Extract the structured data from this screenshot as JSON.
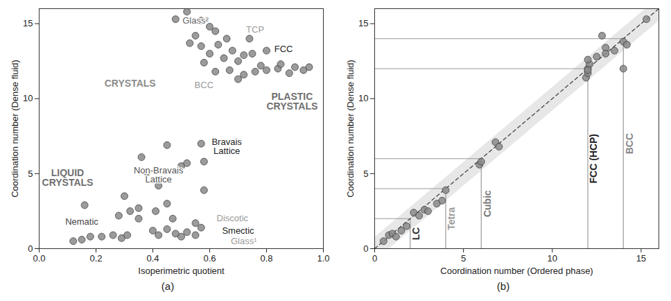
{
  "chart_data": [
    {
      "type": "scatter",
      "panel_label": "(a)",
      "x_label": "Isoperimetric quotient",
      "y_label": "Coordination number (Dense fluid)",
      "xlim": [
        0,
        1
      ],
      "xticks": [
        {
          "value": 0,
          "label": "0.0"
        },
        0.2,
        0.4,
        0.6,
        0.8,
        {
          "value": 1,
          "label": "1.0"
        }
      ],
      "ylim": [
        0,
        16
      ],
      "yticks": [
        0,
        5,
        10,
        15
      ],
      "color": "#8a8a8a",
      "points": {
        "x": [
          0.16,
          0.12,
          0.15,
          0.18,
          0.22,
          0.26,
          0.29,
          0.31,
          0.28,
          0.3,
          0.32,
          0.35,
          0.36,
          0.38,
          0.42,
          0.45,
          0.45,
          0.5,
          0.52,
          0.57,
          0.58,
          0.58,
          0.4,
          0.42,
          0.45,
          0.48,
          0.5,
          0.52,
          0.55,
          0.57,
          0.55,
          0.35,
          0.41,
          0.47,
          0.52,
          0.48,
          0.57,
          0.55,
          0.6,
          0.62,
          0.66,
          0.63,
          0.57,
          0.6,
          0.65,
          0.68,
          0.7,
          0.72,
          0.75,
          0.78,
          0.62,
          0.67,
          0.72,
          0.76,
          0.8,
          0.84,
          0.88,
          0.9,
          0.93,
          0.95,
          0.85,
          0.8,
          0.74,
          0.7,
          0.58,
          0.53
        ],
        "y": [
          2.9,
          0.5,
          0.6,
          0.8,
          0.8,
          0.9,
          0.7,
          0.9,
          2.2,
          3.5,
          2.5,
          2.7,
          6.1,
          5.1,
          4.2,
          3.0,
          6.9,
          5.5,
          5.7,
          7.0,
          5.8,
          3.9,
          1.2,
          0.9,
          1.3,
          1.0,
          0.8,
          1.1,
          0.9,
          1.4,
          1.7,
          2.0,
          2.5,
          2.0,
          15.8,
          15.3,
          15.2,
          14.2,
          14.8,
          14.5,
          14.0,
          13.6,
          13.5,
          13.0,
          12.7,
          13.2,
          12.5,
          12.9,
          13.0,
          12.2,
          11.8,
          11.9,
          11.6,
          11.8,
          11.9,
          12.0,
          11.7,
          12.1,
          11.9,
          12.1,
          12.3,
          13.2,
          14.0,
          11.3,
          12.4,
          13.7
        ]
      },
      "annotations": [
        {
          "text": "CRYSTALS",
          "x": 0.32,
          "y": 11,
          "color": "#8c8c8c",
          "kind": "region"
        },
        {
          "text": "PLASTIC CRYSTALS",
          "x": 0.89,
          "y": 9.8,
          "color": "#707070",
          "kind": "region"
        },
        {
          "text": "LIQUID CRYSTALS",
          "x": 0.1,
          "y": 4.7,
          "color": "#707070",
          "kind": "region"
        },
        {
          "text": "Glass²",
          "x": 0.55,
          "y": 15.2,
          "color": "#666666",
          "kind": "label"
        },
        {
          "text": "TCP",
          "x": 0.76,
          "y": 14.6,
          "color": "#9a9a9a",
          "kind": "label"
        },
        {
          "text": "FCC",
          "x": 0.86,
          "y": 13.3,
          "color": "#222222",
          "kind": "label"
        },
        {
          "text": "BCC",
          "x": 0.58,
          "y": 10.9,
          "color": "#9a9a9a",
          "kind": "label"
        },
        {
          "text": "Bravais Lattice",
          "x": 0.66,
          "y": 6.8,
          "color": "#222222",
          "kind": "label"
        },
        {
          "text": "Non-Bravais Lattice",
          "x": 0.42,
          "y": 4.9,
          "color": "#555555",
          "kind": "label"
        },
        {
          "text": "Nematic",
          "x": 0.15,
          "y": 1.8,
          "color": "#444444",
          "kind": "label"
        },
        {
          "text": "Discotic",
          "x": 0.68,
          "y": 2.0,
          "color": "#9a9a9a",
          "kind": "label"
        },
        {
          "text": "Smectic",
          "x": 0.7,
          "y": 1.2,
          "color": "#222222",
          "kind": "label"
        },
        {
          "text": "Glass¹",
          "x": 0.72,
          "y": 0.5,
          "color": "#9a9a9a",
          "kind": "label"
        }
      ]
    },
    {
      "type": "scatter",
      "panel_label": "(b)",
      "x_label": "Coordination number (Ordered phase)",
      "y_label": "Coordination number (Dense fluid)",
      "xlim": [
        0,
        16
      ],
      "xticks": [
        0,
        5,
        10,
        15
      ],
      "ylim": [
        0,
        16
      ],
      "yticks": [
        0,
        5,
        10,
        15
      ],
      "color": "#8a8a8a",
      "points": {
        "x": [
          0.5,
          0.8,
          1,
          1.2,
          1.5,
          1.8,
          2.2,
          2.5,
          2.8,
          3,
          3.5,
          4,
          3.8,
          5.9,
          6,
          6.8,
          7,
          11.9,
          12,
          12,
          12.1,
          12,
          12.5,
          12,
          13,
          13.5,
          14,
          14,
          14.2,
          15.3,
          13,
          12.8
        ],
        "y": [
          0.5,
          0.9,
          1,
          0.8,
          1.2,
          1.5,
          2.4,
          2.2,
          2.6,
          2.5,
          3.0,
          3.9,
          3.2,
          5.6,
          5.8,
          7.1,
          6.8,
          11.4,
          11.7,
          12.0,
          12.3,
          12.6,
          12.8,
          11.9,
          13.4,
          13.2,
          12.0,
          13.8,
          13.6,
          15.3,
          13.0,
          14.2
        ]
      },
      "reference_line": {
        "x": [
          0,
          16
        ],
        "y": [
          0,
          16
        ],
        "line_style": "dashed"
      },
      "guides": [
        {
          "value": 2,
          "label": "LC",
          "color": "#333333"
        },
        {
          "value": 4,
          "label": "Tetra",
          "color": "#9a9a9a"
        },
        {
          "value": 6,
          "label": "Cubic",
          "color": "#777777"
        },
        {
          "value": 12,
          "label": "FCC (HCP)",
          "color": "#222222"
        },
        {
          "value": 14,
          "label": "BCC",
          "color": "#888888"
        }
      ]
    }
  ]
}
